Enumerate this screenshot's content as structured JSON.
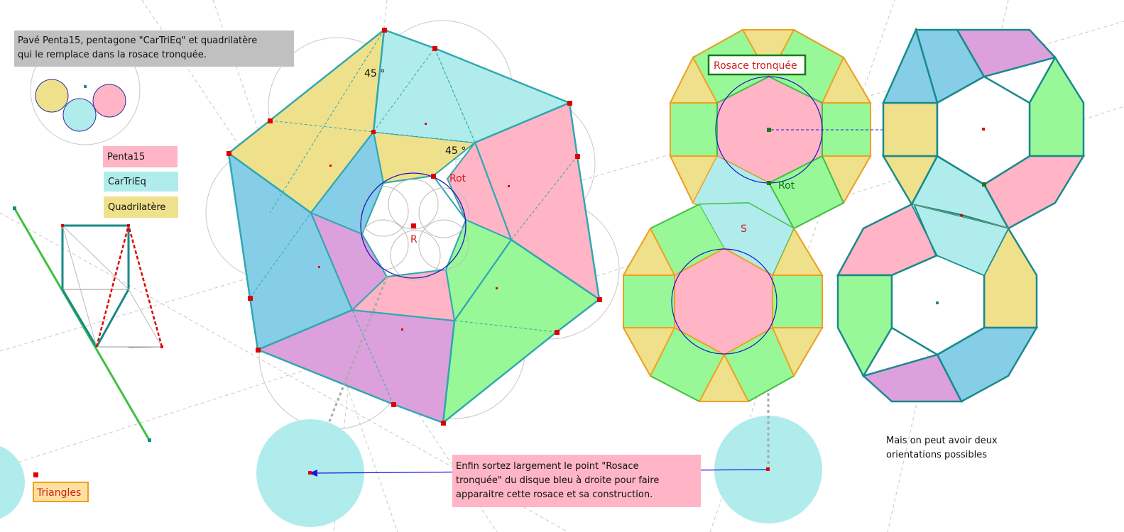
{
  "notes": {
    "intro_line1": "Pavé Penta15,  pentagone \"CarTriEq\" et quadrilatère",
    "intro_line2": "qui le remplace dans la rosace tronquée.",
    "final_line1": "Enfin sortez largement le point \"Rosace",
    "final_line2": "tronquée\" du disque bleu à droite  pour faire",
    "final_line3": "apparaitre cette rosace et sa construction.",
    "orient_line1": "Mais on peut avoir deux",
    "orient_line2": "orientations possibles"
  },
  "legend": {
    "penta15": "Penta15",
    "cartrieq": "CarTriEq",
    "quadrilatere": "Quadrilatère"
  },
  "buttons": {
    "triangles": "Triangles",
    "rosace": "Rosace tronquée"
  },
  "labels": {
    "angle_top": "45 °",
    "angle_mid": "45 °",
    "rot": "Rot",
    "r": "R",
    "rot2": "Rot",
    "s": "S"
  },
  "colors": {
    "pink": "#ffb5c5",
    "cyan": "#b0ecec",
    "yellow": "#efe08c",
    "green": "#98f898",
    "blue": "#86cde8",
    "violet": "#dca0dc",
    "teal_edge": "#30a8b0",
    "orange_edge": "#f0a020",
    "point": "#e00000"
  }
}
